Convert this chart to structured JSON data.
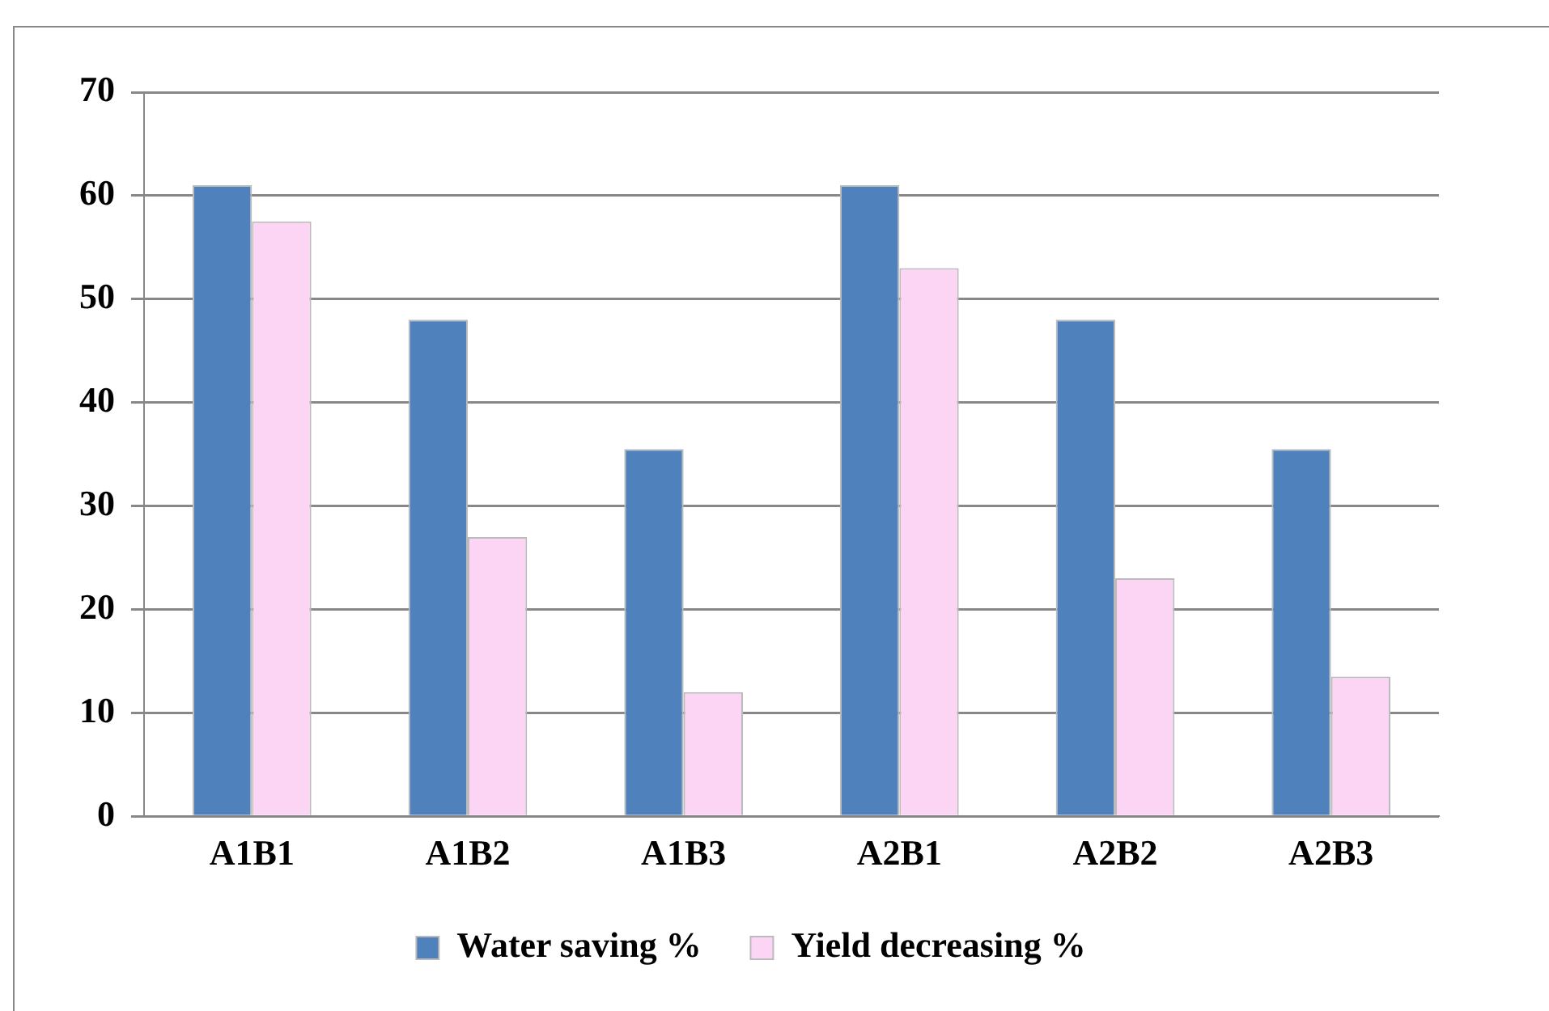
{
  "chart_data": {
    "type": "bar",
    "categories": [
      "A1B1",
      "A1B2",
      "A1B3",
      "A2B1",
      "A2B2",
      "A2B3"
    ],
    "series": [
      {
        "name": "Water saving %",
        "color": "#4f81bd",
        "values": [
          61,
          48,
          35.5,
          61,
          48,
          35.5
        ]
      },
      {
        "name": "Yield decreasing %",
        "color": "#fcd5f5",
        "values": [
          57.5,
          27,
          12,
          53,
          23,
          13.5
        ]
      }
    ],
    "ylim": [
      0,
      70
    ],
    "yticks": [
      0,
      10,
      20,
      30,
      40,
      50,
      60,
      70
    ],
    "grid": "y",
    "legend": "bottom"
  }
}
